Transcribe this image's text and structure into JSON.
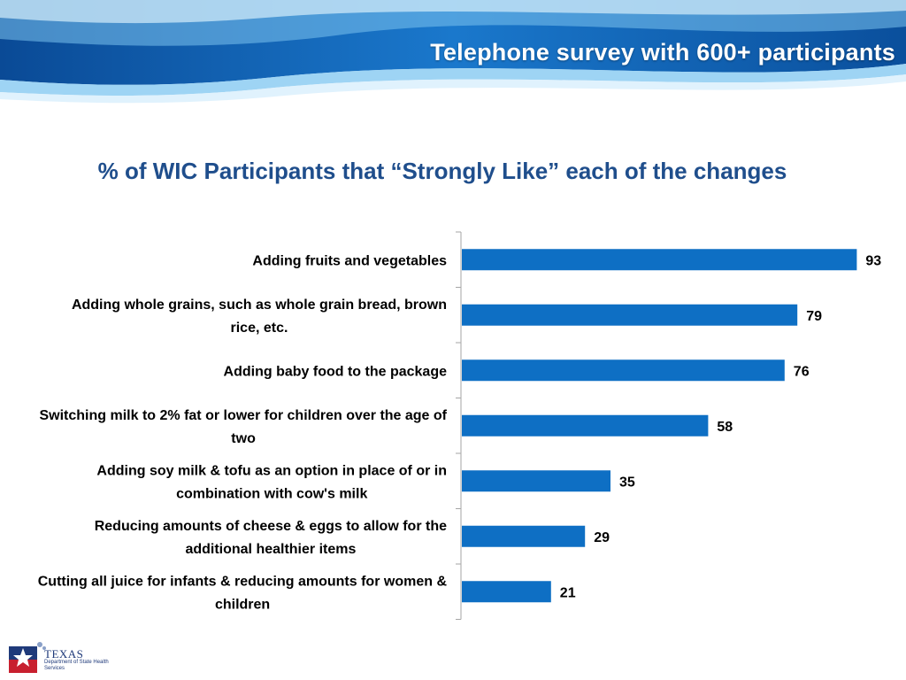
{
  "slide": {
    "title": "Telephone survey with 600+ participants"
  },
  "logo": {
    "name": "TEXAS",
    "subtitle": "Department of State Health Services"
  },
  "colors": {
    "bar": "#0e6fc4",
    "header_dark": "#0a4f9c",
    "header_light": "#6fb8ea",
    "chart_title": "#1f4e8c"
  },
  "chart_data": {
    "type": "bar",
    "orientation": "horizontal",
    "title": "% of WIC Participants that “Strongly Like” each of the changes",
    "categories": [
      [
        "Adding fruits and vegetables"
      ],
      [
        "Adding whole grains, such as whole grain bread, brown",
        "rice, etc."
      ],
      [
        "Adding baby food to the package"
      ],
      [
        "Switching milk to 2% fat or lower for children over the age of",
        "two"
      ],
      [
        "Adding soy milk & tofu as an option in place of or in",
        "combination with cow's milk"
      ],
      [
        "Reducing amounts of cheese & eggs to allow for the",
        "additional healthier items"
      ],
      [
        "Cutting all juice for infants & reducing amounts for women &",
        "children"
      ]
    ],
    "values": [
      93,
      79,
      76,
      58,
      35,
      29,
      21
    ],
    "xlim": [
      0,
      100
    ],
    "xlabel": "",
    "ylabel": "",
    "grid": false,
    "legend": "none",
    "data_labels": true
  }
}
